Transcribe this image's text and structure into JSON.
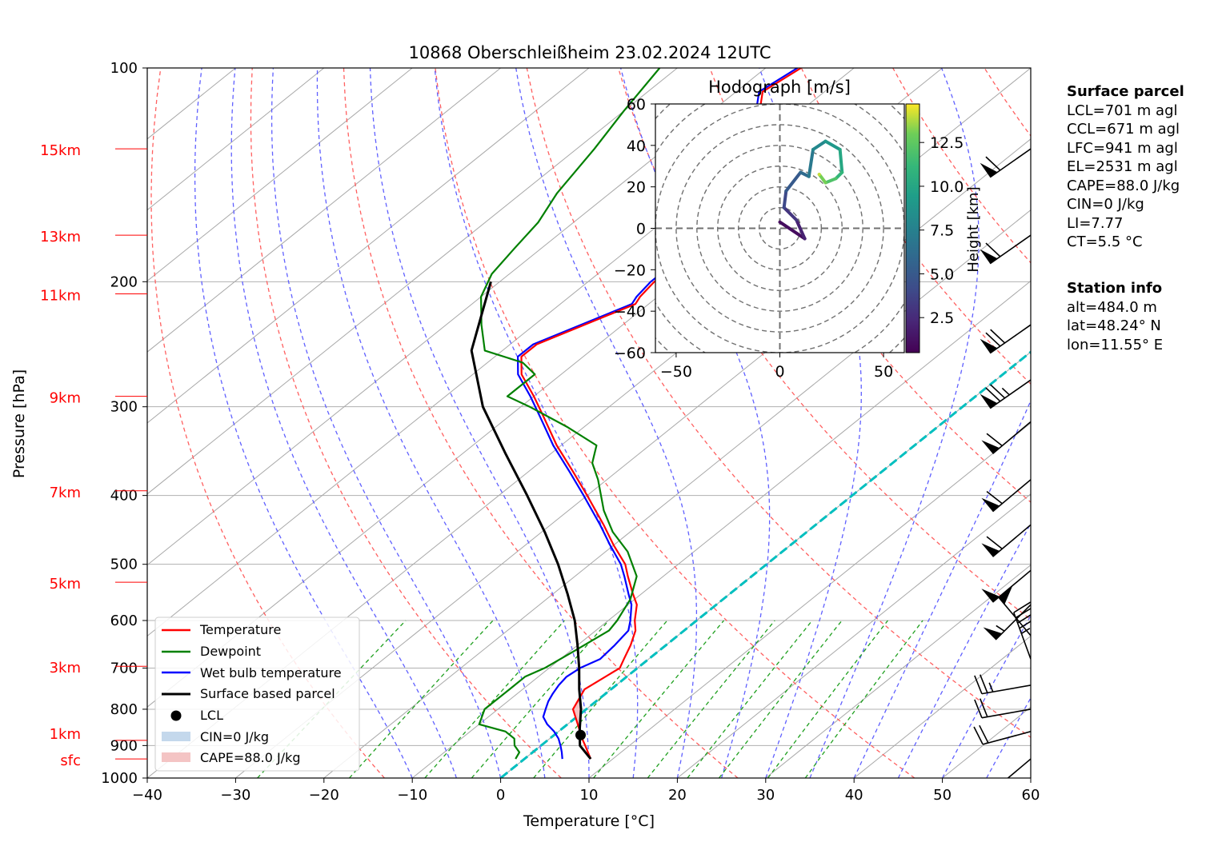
{
  "title": "10868 Oberschleißheim 23.02.2024 12UTC",
  "axes": {
    "xlabel": "Temperature [°C]",
    "ylabel": "Pressure [hPa]",
    "xticks": [
      "−40",
      "−30",
      "−20",
      "−10",
      "0",
      "10",
      "20",
      "30",
      "40",
      "50",
      "60"
    ],
    "yticks": [
      "100",
      "200",
      "300",
      "400",
      "500",
      "600",
      "700",
      "800",
      "900",
      "1000"
    ],
    "height_labels": [
      "15km",
      "13km",
      "11km",
      "9km",
      "7km",
      "5km",
      "3km",
      "1km",
      "sfc"
    ]
  },
  "legend": {
    "temperature": "Temperature",
    "dewpoint": "Dewpoint",
    "wetbulb": "Wet bulb temperature",
    "parcel": "Surface based parcel",
    "lcl": "LCL",
    "cin": "CIN=0 J/kg",
    "cape": "CAPE=88.0 J/kg"
  },
  "hodograph": {
    "title": "Hodograph [m/s]",
    "xticks": [
      "−50",
      "0",
      "50"
    ],
    "yticks": [
      "60",
      "40",
      "20",
      "0",
      "−20",
      "−40",
      "−60"
    ],
    "colorbar_label": "Height [km]",
    "colorbar_ticks": [
      "12.5",
      "10.0",
      "7.5",
      "5.0",
      "2.5"
    ]
  },
  "surface_parcel": {
    "heading": "Surface parcel",
    "lines": [
      "LCL=701 m agl",
      "CCL=671 m agl",
      "LFC=941 m agl",
      "EL=2531 m agl",
      "CAPE=88.0 J/kg",
      "CIN=0 J/kg",
      "LI=7.77",
      "CT=5.5 °C"
    ]
  },
  "station_info": {
    "heading": "Station info",
    "lines": [
      "alt=484.0 m",
      "lat=48.24° N",
      "lon=11.55° E"
    ]
  },
  "colors": {
    "temperature": "#ff0000",
    "dewpoint": "#008000",
    "wetbulb": "#0000ff",
    "parcel": "#000000",
    "dry_adiabat": "#ff6060",
    "moist_adiabat": "#6060ff",
    "mixing_ratio": "#20a020",
    "isotherm_zero": "#00bfbf",
    "cape_fill": "#f4c4c4",
    "cin_fill": "#c4d8ec"
  },
  "chart_data": {
    "type": "line",
    "diagram": "skew-T log-p",
    "xlim": [
      -40,
      60
    ],
    "ylim": [
      1000,
      100
    ],
    "y_scale": "log",
    "skew_degC_per_decade": 100,
    "series": [
      {
        "name": "Temperature",
        "p": [
          940,
          900,
          870,
          850,
          800,
          750,
          700,
          680,
          650,
          620,
          600,
          570,
          550,
          520,
          500,
          470,
          440,
          400,
          370,
          340,
          310,
          290,
          270,
          255,
          245,
          215,
          210,
          200,
          195,
          185,
          170,
          165,
          150,
          130,
          120,
          108,
          100
        ],
        "T": [
          7.5,
          5.0,
          3.0,
          1.8,
          -1.5,
          -3.0,
          -2.0,
          -2.8,
          -4.0,
          -5.5,
          -7.0,
          -9.0,
          -11.0,
          -14.0,
          -16.0,
          -20.0,
          -24.0,
          -30.0,
          -35.0,
          -40.5,
          -46.0,
          -50.0,
          -54.5,
          -57.0,
          -57.0,
          -51.5,
          -52.0,
          -52.5,
          -52.5,
          -54.0,
          -55.0,
          -56.5,
          -59.0,
          -66.0,
          -63.0,
          -67.0,
          -66.0
        ]
      },
      {
        "name": "Dewpoint",
        "p": [
          940,
          920,
          900,
          880,
          860,
          840,
          800,
          750,
          720,
          700,
          660,
          620,
          600,
          560,
          520,
          480,
          450,
          420,
          380,
          360,
          340,
          320,
          300,
          290,
          270,
          260,
          250,
          230,
          210,
          195,
          180,
          165,
          150,
          130,
          115,
          100
        ],
        "T": [
          -1.0,
          -1.5,
          -3.0,
          -4.0,
          -6.0,
          -10.0,
          -11.5,
          -11.5,
          -11.5,
          -10.5,
          -9.5,
          -8.5,
          -9.0,
          -10.5,
          -13.0,
          -17.5,
          -22.0,
          -26.0,
          -31.0,
          -34.0,
          -36.0,
          -42.0,
          -49.0,
          -53.0,
          -53.0,
          -56.0,
          -62.0,
          -66.0,
          -70.0,
          -72.0,
          -73.0,
          -74.0,
          -76.0,
          -78.0,
          -80.0,
          -82.0
        ]
      },
      {
        "name": "Wet bulb temperature",
        "p": [
          940,
          920,
          900,
          880,
          860,
          840,
          820,
          800,
          780,
          760,
          740,
          720,
          700,
          680,
          650,
          620,
          600,
          570,
          550,
          520,
          500,
          470,
          440,
          400,
          370,
          340,
          310,
          290,
          270,
          255,
          245,
          215,
          210,
          200,
          195,
          185,
          170,
          165,
          150,
          130,
          120,
          108,
          100
        ],
        "T": [
          4.3,
          3.3,
          2.2,
          1.0,
          -0.5,
          -2.3,
          -3.8,
          -4.6,
          -5.4,
          -6.0,
          -6.5,
          -6.8,
          -6.5,
          -5.5,
          -5.8,
          -6.3,
          -7.5,
          -9.6,
          -11.5,
          -14.4,
          -16.5,
          -20.4,
          -24.4,
          -30.4,
          -35.4,
          -40.9,
          -46.4,
          -50.4,
          -54.9,
          -57.4,
          -57.4,
          -51.9,
          -52.4,
          -52.9,
          -52.9,
          -54.4,
          -55.4,
          -56.9,
          -59.4,
          -66.4,
          -63.4,
          -67.4,
          -66.4
        ]
      },
      {
        "name": "Surface based parcel",
        "p": [
          940,
          900,
          870,
          850,
          800,
          750,
          700,
          650,
          600,
          550,
          500,
          450,
          400,
          350,
          300,
          250,
          200
        ],
        "T": [
          7.5,
          4.4,
          2.9,
          1.9,
          -0.6,
          -3.6,
          -6.6,
          -10.0,
          -13.8,
          -18.4,
          -23.6,
          -29.7,
          -36.8,
          -45.0,
          -54.3,
          -63.5,
          -71.0
        ]
      }
    ],
    "lcl": {
      "p": 870,
      "T": 3.0
    },
    "surface_pressure": 940,
    "dry_adiabats_theta_K": [
      260,
      280,
      300,
      320,
      340,
      360,
      380,
      400,
      420,
      440,
      460,
      480,
      500,
      520,
      540
    ],
    "moist_adiabats_thetae_C": [
      -10,
      -5,
      0,
      5,
      10,
      15,
      20,
      25,
      30,
      35,
      40,
      45,
      50,
      55,
      60
    ],
    "mixing_ratios_gkg": [
      0.4,
      1,
      2,
      3,
      5,
      8,
      12,
      16,
      20,
      28,
      36
    ],
    "height_marker_pressures": [
      130,
      172,
      208,
      290,
      394,
      530,
      696,
      885,
      940
    ],
    "barbs": [
      {
        "p": 130,
        "speed_kt": 60,
        "dir_deg": 235
      },
      {
        "p": 172,
        "speed_kt": 60,
        "dir_deg": 235
      },
      {
        "p": 230,
        "speed_kt": 70,
        "dir_deg": 235
      },
      {
        "p": 275,
        "speed_kt": 75,
        "dir_deg": 235
      },
      {
        "p": 315,
        "speed_kt": 60,
        "dir_deg": 230
      },
      {
        "p": 380,
        "speed_kt": 60,
        "dir_deg": 230
      },
      {
        "p": 440,
        "speed_kt": 60,
        "dir_deg": 230
      },
      {
        "p": 510,
        "speed_kt": 50,
        "dir_deg": 230
      },
      {
        "p": 570,
        "speed_kt": 55,
        "dir_deg": 225
      },
      {
        "p": 630,
        "speed_kt": 50,
        "dir_deg": 320
      },
      {
        "p": 680,
        "speed_kt": 45,
        "dir_deg": 340
      },
      {
        "p": 740,
        "speed_kt": 25,
        "dir_deg": 260
      },
      {
        "p": 800,
        "speed_kt": 20,
        "dir_deg": 260
      },
      {
        "p": 860,
        "speed_kt": 20,
        "dir_deg": 255
      },
      {
        "p": 940,
        "speed_kt": 10,
        "dir_deg": 230
      }
    ],
    "hodograph": {
      "xlim": [
        -60,
        60
      ],
      "ylim": [
        -60,
        60
      ],
      "ring_step": 10,
      "colorbar_range_km": [
        0.5,
        14.7
      ],
      "z_km": [
        0.5,
        1.5,
        2.5,
        3.5,
        4.5,
        5.5,
        6.5,
        7.5,
        8.5,
        9.5,
        10.5,
        11.5,
        12.5,
        13.5,
        14.5
      ],
      "u": [
        0,
        12,
        8,
        2,
        3,
        10,
        14,
        16,
        22,
        29,
        30,
        27,
        22,
        19,
        19
      ],
      "v": [
        3,
        -5,
        4,
        10,
        18,
        27,
        25,
        38,
        42,
        38,
        27,
        24,
        22,
        26,
        26
      ]
    }
  }
}
